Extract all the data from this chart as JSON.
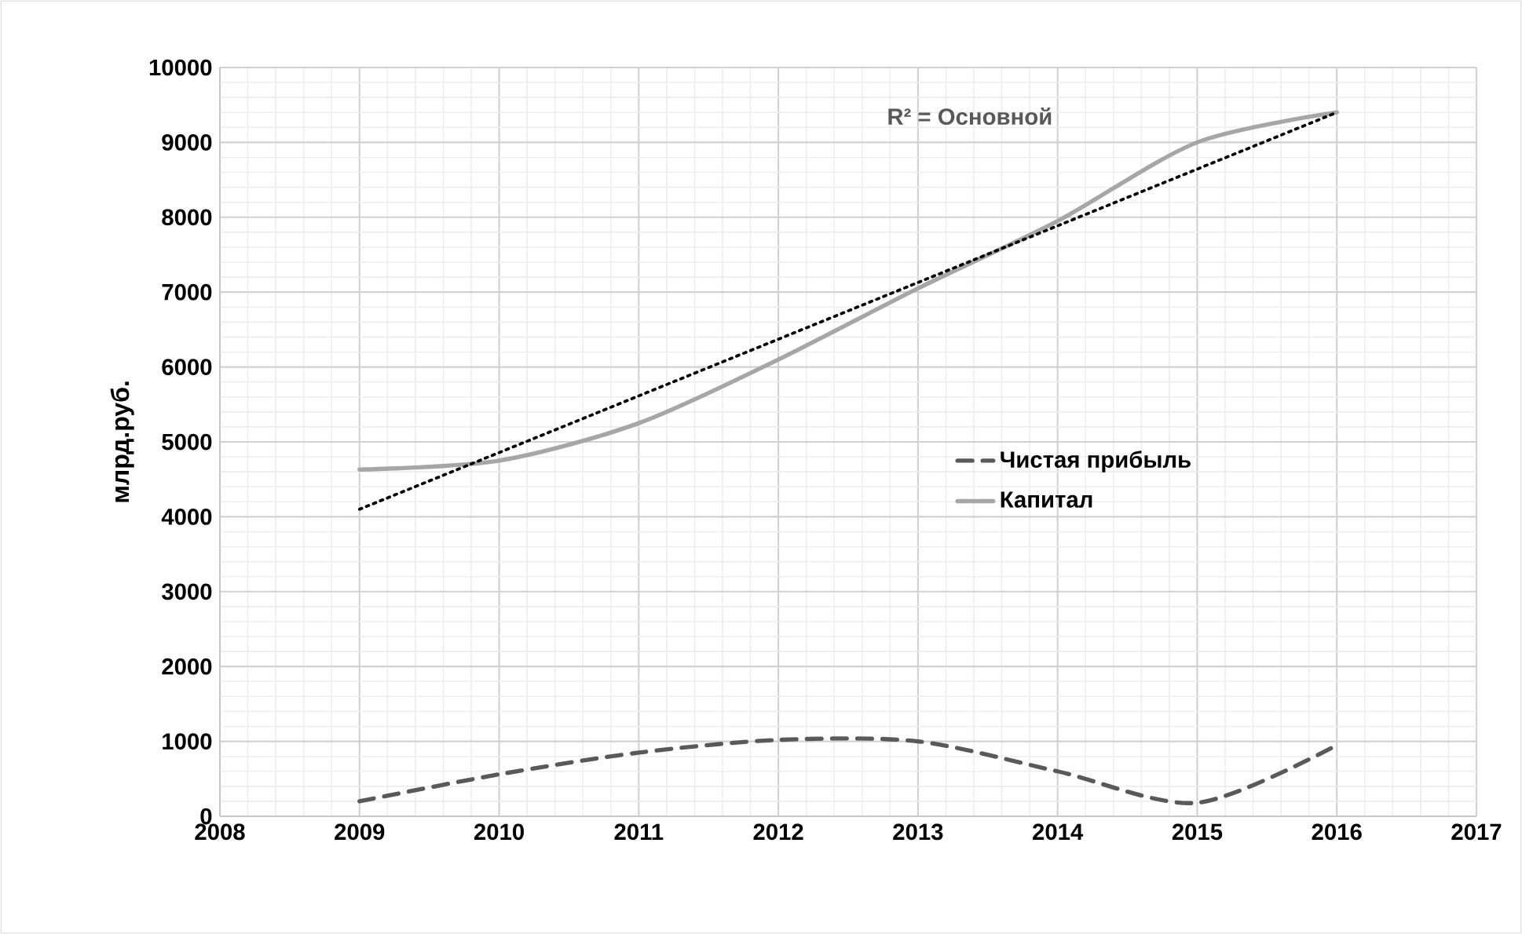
{
  "chart_data": {
    "type": "line",
    "ylabel": "млрд.руб.",
    "x": [
      2009,
      2010,
      2011,
      2012,
      2013,
      2014,
      2015,
      2016
    ],
    "series": [
      {
        "name": "Чистая прибыль",
        "color": "#595959",
        "line_style": "dashed",
        "values": [
          200,
          560,
          850,
          1020,
          1000,
          600,
          180,
          950
        ]
      },
      {
        "name": "Капитал",
        "color": "#a6a6a6",
        "line_style": "solid",
        "values": [
          4630,
          4750,
          5250,
          6100,
          7050,
          7950,
          9000,
          9400
        ]
      },
      {
        "color": "#000000",
        "line_style": "dotted",
        "x": [
          2009,
          2016
        ],
        "values": [
          4100,
          9400
        ]
      }
    ],
    "xlim": [
      2008,
      2017
    ],
    "ylim": [
      0,
      10000
    ],
    "xticks": [
      2008,
      2009,
      2010,
      2011,
      2012,
      2013,
      2014,
      2015,
      2016,
      2017
    ],
    "yticks": [
      0,
      1000,
      2000,
      3000,
      4000,
      5000,
      6000,
      7000,
      8000,
      9000,
      10000
    ],
    "grid": true,
    "legend": "right",
    "marker": "none",
    "annotations": [
      "R² = Основной"
    ]
  }
}
